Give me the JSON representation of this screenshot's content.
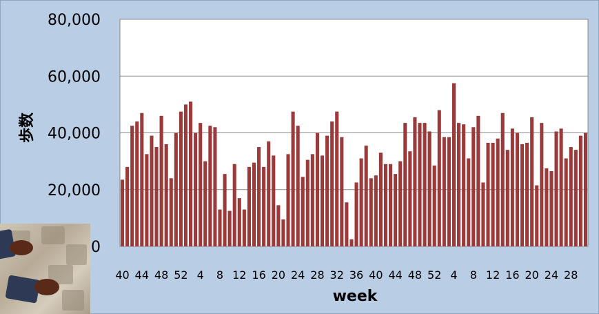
{
  "chart_data": {
    "type": "bar",
    "xlabel": "week",
    "ylabel": "歩数",
    "ylim": [
      0,
      80000
    ],
    "yticks": [
      "0",
      "20,000",
      "40,000",
      "60,000",
      "80,000"
    ],
    "xtick_labels": [
      "40",
      "44",
      "48",
      "52",
      "4",
      "8",
      "12",
      "16",
      "20",
      "24",
      "28",
      "32",
      "36",
      "40",
      "44",
      "48",
      "52",
      "4",
      "8",
      "12",
      "16",
      "20",
      "24",
      "28"
    ],
    "bar_color": "#9b3a3a",
    "grid": "horizontal",
    "values": [
      23500,
      28000,
      42500,
      44000,
      47000,
      32500,
      39000,
      35000,
      46000,
      36000,
      24000,
      40000,
      47500,
      50000,
      51000,
      40000,
      43500,
      30000,
      42500,
      42000,
      13000,
      25500,
      12500,
      29000,
      17000,
      13000,
      28000,
      29500,
      35000,
      28000,
      37000,
      32000,
      14500,
      9500,
      32500,
      47500,
      42500,
      24500,
      30500,
      32500,
      40000,
      32000,
      39000,
      44000,
      47500,
      38500,
      15500,
      2500,
      22500,
      31000,
      35500,
      24000,
      25000,
      33000,
      29000,
      29000,
      25500,
      30000,
      43500,
      33500,
      45500,
      43500,
      43500,
      40500,
      28500,
      48000,
      38500,
      38500,
      57500,
      43500,
      43000,
      31000,
      42000,
      46000,
      22500,
      36500,
      36500,
      38000,
      47000,
      34000,
      41500,
      40000,
      36000,
      36500,
      45500,
      21500,
      43500,
      27500,
      26500,
      40500,
      41500,
      31000,
      35000,
      34000,
      39000,
      40000
    ]
  }
}
